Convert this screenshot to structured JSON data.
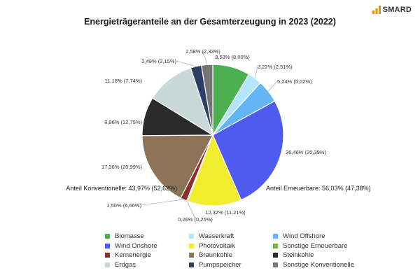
{
  "brand": {
    "name": "SMARD"
  },
  "chart_data": {
    "type": "pie",
    "title": "Energieträgeranteile an der Gesamterzeugung in 2023 (2022)",
    "slices": [
      {
        "name": "Biomasse",
        "value": 8.53,
        "label": "8,53% (8,00%)",
        "color": "#4caf50"
      },
      {
        "name": "Wasserkraft",
        "value": 3.22,
        "label": "3,22% (2,51%)",
        "color": "#b3e5fc"
      },
      {
        "name": "Wind Offshore",
        "value": 5.24,
        "label": "5,24% (5,02%)",
        "color": "#64b5f6"
      },
      {
        "name": "Wind Onshore",
        "value": 26.46,
        "label": "26,46% (20,39%)",
        "color": "#4f5bef"
      },
      {
        "name": "Photovoltaik",
        "value": 12.32,
        "label": "12,32% (11,21%)",
        "color": "#f2ec2e"
      },
      {
        "name": "Sonstige Erneuerbare",
        "value": 0.26,
        "label": "0,26% (0,25%)",
        "color": "#7cb342"
      },
      {
        "name": "Kernenergie",
        "value": 1.5,
        "label": "1,50% (6,66%)",
        "color": "#8b2e2e"
      },
      {
        "name": "Braunkohle",
        "value": 17.36,
        "label": "17,36% (20,99%)",
        "color": "#8d7358"
      },
      {
        "name": "Steinkohle",
        "value": 8.86,
        "label": "8,86% (12,75%)",
        "color": "#2b2b2b"
      },
      {
        "name": "Erdgas",
        "value": 11.18,
        "label": "11,18% (7,74%)",
        "color": "#c9d9d9"
      },
      {
        "name": "Pumpspeicher",
        "value": 2.49,
        "label": "2,49% (2,15%)",
        "color": "#2e3d63"
      },
      {
        "name": "Sonstige Konventionelle",
        "value": 2.58,
        "label": "2,58% (2,33%)",
        "color": "#757575"
      }
    ],
    "annotations": {
      "renewable": "Anteil Erneuerbare: 56,03% (47,38%)",
      "conventional": "Anteil Konventionelle: 43,97% (52,62%)"
    },
    "legend": {
      "position": "bottom",
      "columns": 3,
      "items": [
        {
          "name": "Biomasse",
          "color": "#4caf50"
        },
        {
          "name": "Wasserkraft",
          "color": "#b3e5fc"
        },
        {
          "name": "Wind Offshore",
          "color": "#64b5f6"
        },
        {
          "name": "Wind Onshore",
          "color": "#4f5bef"
        },
        {
          "name": "Photovoltaik",
          "color": "#f2ec2e"
        },
        {
          "name": "Sonstige Erneuerbare",
          "color": "#7cb342"
        },
        {
          "name": "Kernenergie",
          "color": "#8b2e2e"
        },
        {
          "name": "Braunkohle",
          "color": "#8d7358"
        },
        {
          "name": "Steinkohle",
          "color": "#2b2b2b"
        },
        {
          "name": "Erdgas",
          "color": "#c9d9d9"
        },
        {
          "name": "Pumpspeicher",
          "color": "#2e3d63"
        },
        {
          "name": "Sonstige Konventionelle",
          "color": "#757575"
        }
      ]
    }
  }
}
